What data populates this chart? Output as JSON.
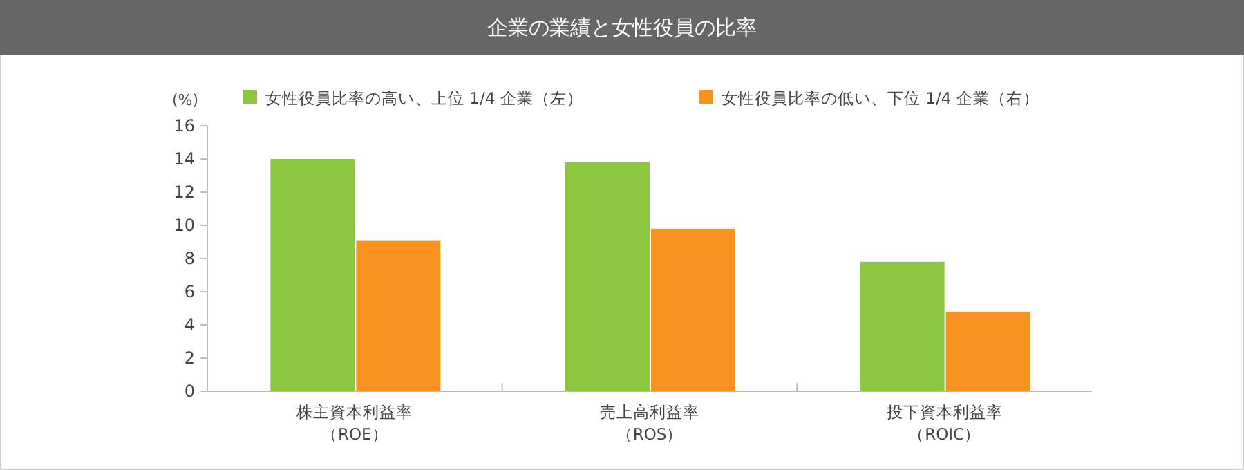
{
  "chart_data": {
    "type": "bar",
    "title": "企業の業績と女性役員の比率",
    "ylabel": "(%)",
    "categories": [
      "株主資本利益率（ROE）",
      "売上高利益率（ROS）",
      "投下資本利益率（ROIC）"
    ],
    "series": [
      {
        "name": "女性役員比率の高い、上位 1/4 企業（左）",
        "color": "#8dc63f",
        "values": [
          14.0,
          13.8,
          7.8
        ]
      },
      {
        "name": "女性役員比率の低い、下位 1/4 企業（右）",
        "color": "#f7931e",
        "values": [
          9.1,
          9.8,
          4.8
        ]
      }
    ],
    "ylim": [
      0,
      16
    ],
    "yticks": [
      0,
      2,
      4,
      6,
      8,
      10,
      12,
      14,
      16
    ],
    "grid": false,
    "legend": "top"
  }
}
